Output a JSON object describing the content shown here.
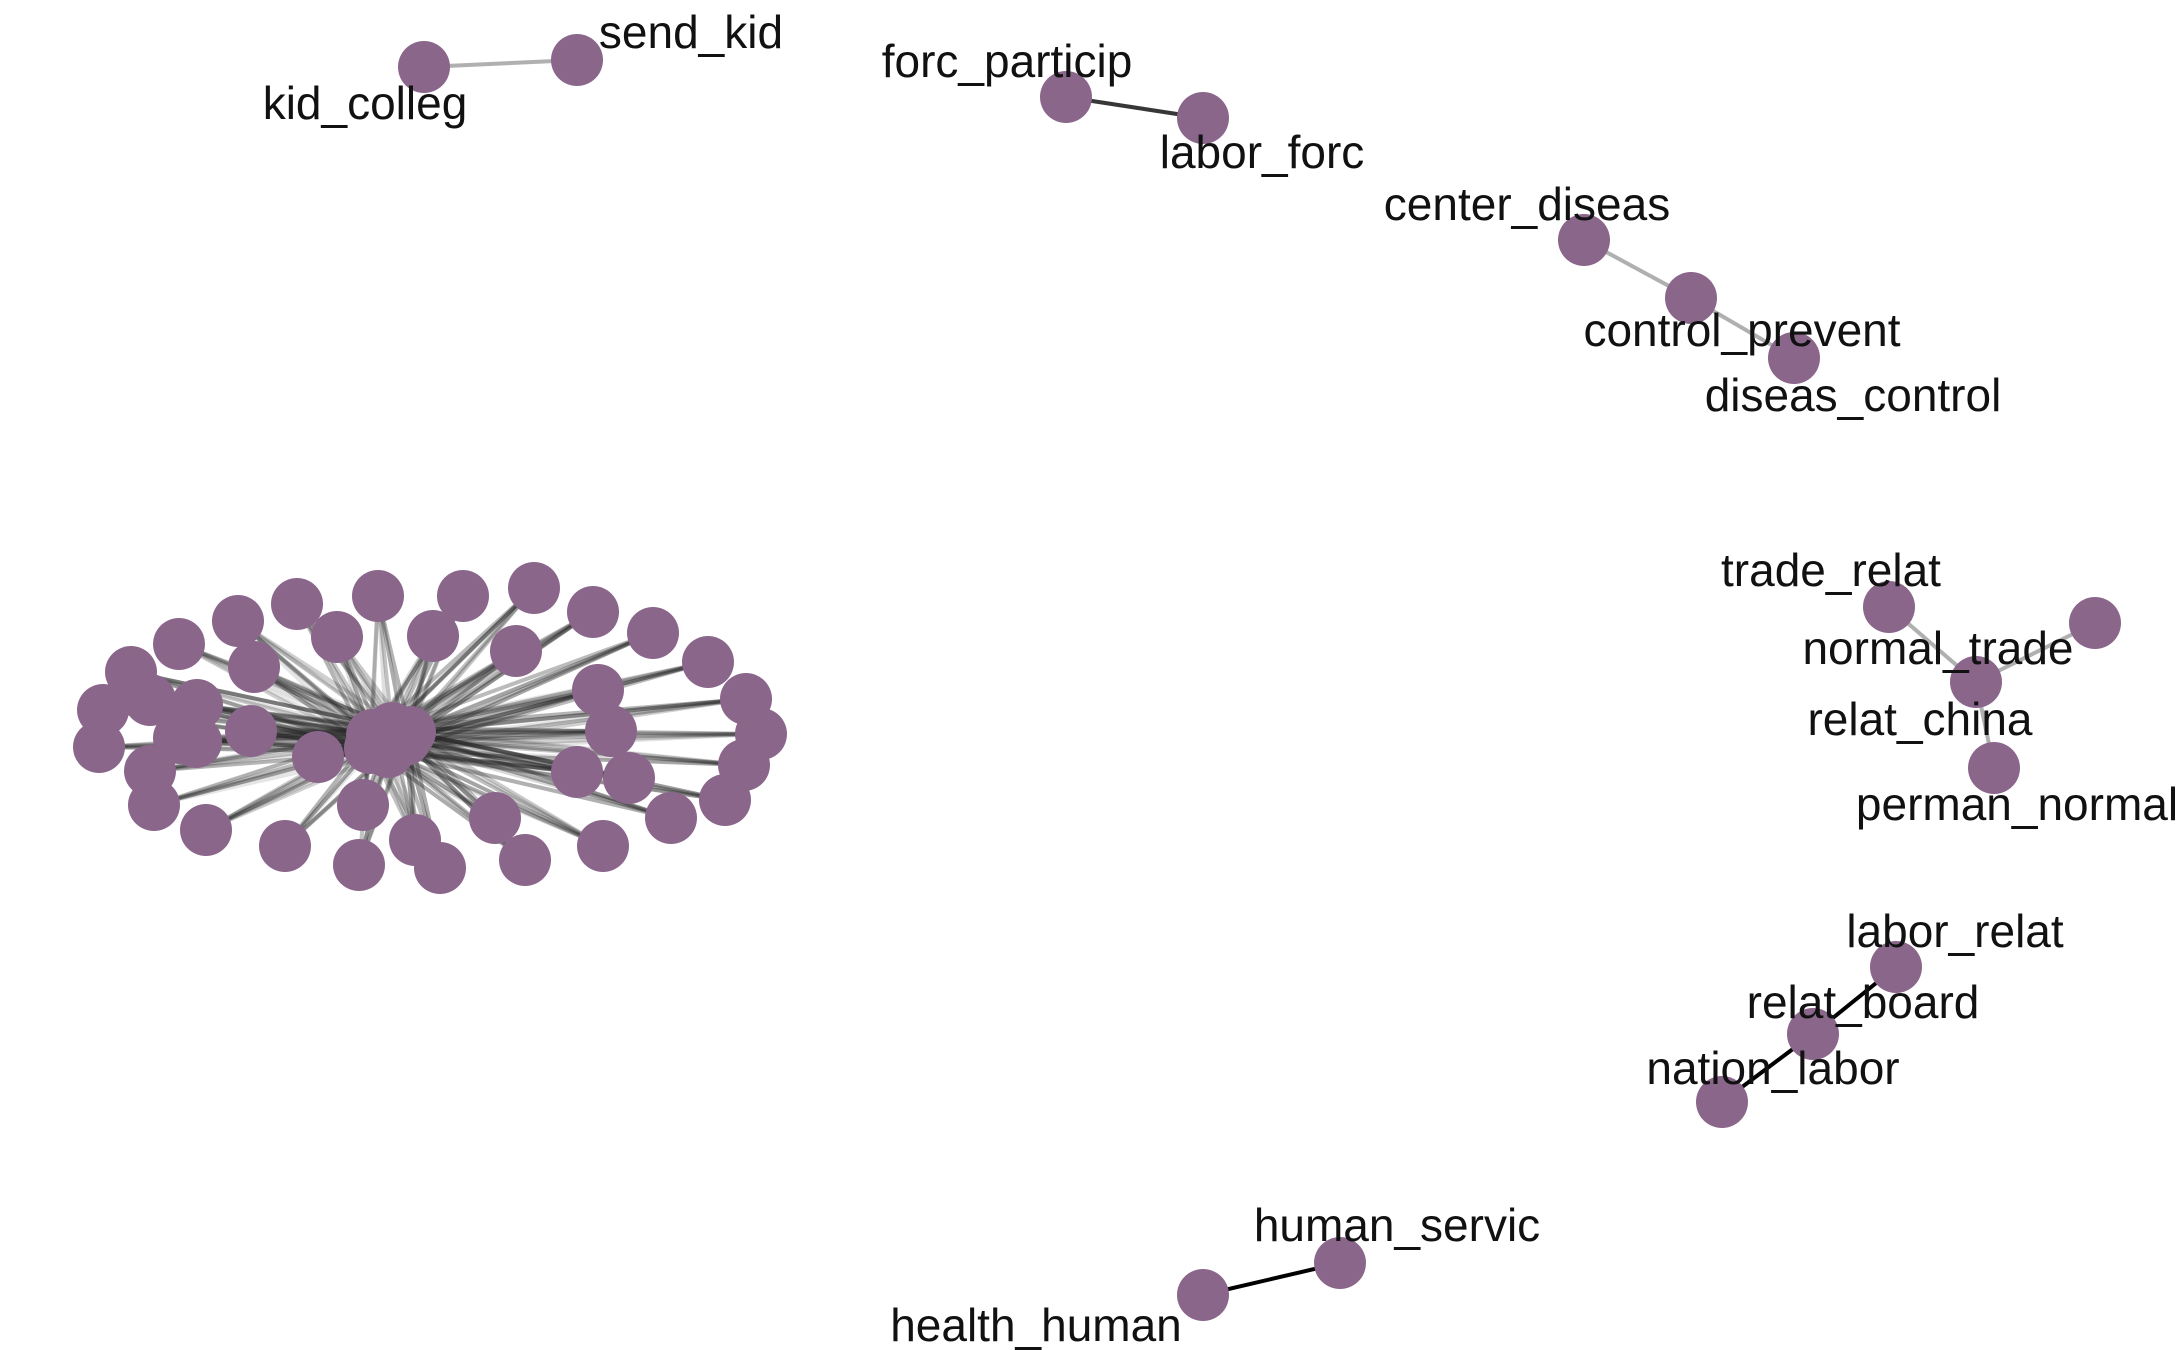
{
  "graph": {
    "node_color": "#8b668b",
    "components": [
      {
        "nodes": [
          {
            "id": "kid_colleg",
            "label": "kid_colleg"
          },
          {
            "id": "send_kid",
            "label": "send_kid"
          }
        ],
        "edges": [
          {
            "source": "kid_colleg",
            "target": "send_kid",
            "weight": 0.2
          }
        ]
      },
      {
        "nodes": [
          {
            "id": "forc_particip",
            "label": "forc_particip"
          },
          {
            "id": "labor_forc",
            "label": "labor_forc"
          }
        ],
        "edges": [
          {
            "source": "forc_particip",
            "target": "labor_forc",
            "weight": 0.75
          }
        ]
      },
      {
        "nodes": [
          {
            "id": "center_diseas",
            "label": "center_diseas"
          },
          {
            "id": "control_prevent",
            "label": "control_prevent"
          },
          {
            "id": "diseas_control",
            "label": "diseas_control"
          }
        ],
        "edges": [
          {
            "source": "center_diseas",
            "target": "control_prevent",
            "weight": 0.2
          },
          {
            "source": "control_prevent",
            "target": "diseas_control",
            "weight": 0.2
          }
        ]
      },
      {
        "nodes": [
          {
            "id": "trade_relat",
            "label": "trade_relat"
          },
          {
            "id": "normal_trade",
            "label": "normal_trade"
          },
          {
            "id": "relat_china",
            "label": "relat_china"
          },
          {
            "id": "perman_normal",
            "label": "perman_normal"
          }
        ],
        "edges": [
          {
            "source": "trade_relat",
            "target": "relat_china",
            "weight": 0.2
          },
          {
            "source": "normal_trade",
            "target": "relat_china",
            "weight": 0.2
          },
          {
            "source": "relat_china",
            "target": "perman_normal",
            "weight": 0.2
          }
        ]
      },
      {
        "nodes": [
          {
            "id": "labor_relat",
            "label": "labor_relat"
          },
          {
            "id": "relat_board",
            "label": "relat_board"
          },
          {
            "id": "nation_labor",
            "label": "nation_labor"
          }
        ],
        "edges": [
          {
            "source": "labor_relat",
            "target": "relat_board",
            "weight": 1.0
          },
          {
            "source": "relat_board",
            "target": "nation_labor",
            "weight": 1.0
          }
        ]
      },
      {
        "nodes": [
          {
            "id": "human_servic",
            "label": "human_servic"
          },
          {
            "id": "health_human",
            "label": "health_human"
          }
        ],
        "edges": [
          {
            "source": "health_human",
            "target": "human_servic",
            "weight": 1.0
          }
        ]
      }
    ],
    "hub_cluster": {
      "leaf_count": 42,
      "hub_count": 6
    }
  }
}
